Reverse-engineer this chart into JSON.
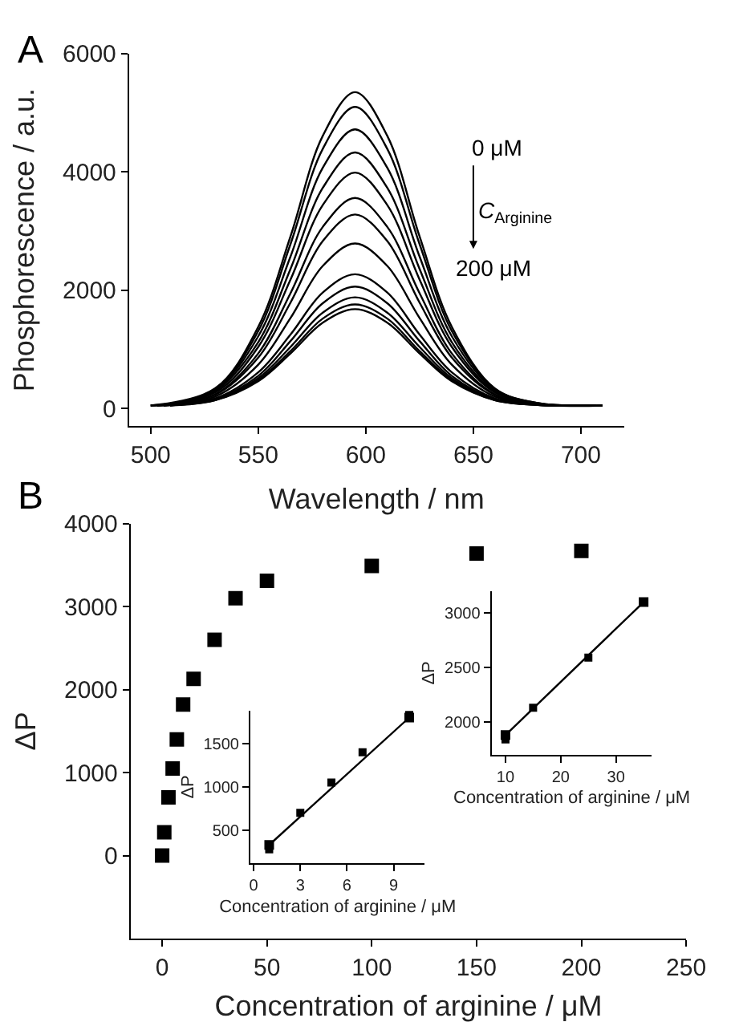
{
  "chart_data": [
    {
      "type": "line",
      "xlabel": "Wavelength / nm",
      "ylabel": "Phosphorescence / a.u.",
      "annotations": [
        "A",
        "0 μM",
        "C$_{Arginine}$",
        "200 μM"
      ],
      "xlim": [
        490,
        720
      ],
      "ylim": [
        -300,
        6000
      ],
      "xticks": [
        500,
        550,
        600,
        650,
        700
      ],
      "yticks": [
        0,
        2000,
        4000,
        6000
      ],
      "line_style": "solid",
      "series": [
        {
          "color": "#000000",
          "x": [
            500,
            530,
            550,
            565,
            580,
            595,
            610,
            625,
            640,
            660,
            680,
            710
          ],
          "values": [
            50,
            340,
            1380,
            2910,
            4610,
            5350,
            4610,
            2910,
            1380,
            340,
            90,
            50
          ]
        },
        {
          "color": "#000000",
          "x": [
            503,
            530,
            550,
            565,
            580,
            595,
            610,
            625,
            640,
            660,
            680,
            710
          ],
          "values": [
            50,
            330,
            1310,
            2780,
            4390,
            5100,
            4390,
            2780,
            1310,
            330,
            90,
            50
          ]
        },
        {
          "color": "#000000",
          "x": [
            506,
            530,
            550,
            565,
            580,
            595,
            610,
            625,
            640,
            660,
            680,
            710
          ],
          "values": [
            50,
            310,
            1220,
            2570,
            4070,
            4720,
            4070,
            2570,
            1220,
            310,
            80,
            50
          ]
        },
        {
          "color": "#000000",
          "x": [
            509,
            530,
            550,
            565,
            580,
            595,
            610,
            625,
            640,
            660,
            680,
            710
          ],
          "values": [
            50,
            290,
            1120,
            2360,
            3730,
            4330,
            3730,
            2360,
            1120,
            290,
            80,
            50
          ]
        },
        {
          "color": "#000000",
          "x": [
            500,
            530,
            550,
            565,
            580,
            595,
            610,
            625,
            640,
            660,
            680,
            707
          ],
          "values": [
            50,
            270,
            1040,
            2180,
            3440,
            3990,
            3440,
            2180,
            1040,
            270,
            80,
            50
          ]
        },
        {
          "color": "#000000",
          "x": [
            503,
            530,
            550,
            565,
            580,
            595,
            610,
            625,
            640,
            660,
            680,
            707
          ],
          "values": [
            50,
            240,
            930,
            1950,
            3070,
            3560,
            3070,
            1950,
            930,
            240,
            70,
            50
          ]
        },
        {
          "color": "#000000",
          "x": [
            506,
            530,
            550,
            565,
            580,
            595,
            610,
            625,
            640,
            660,
            680,
            707
          ],
          "values": [
            50,
            230,
            860,
            1790,
            2830,
            3280,
            2830,
            1790,
            860,
            230,
            70,
            50
          ]
        },
        {
          "color": "#000000",
          "x": [
            509,
            530,
            550,
            565,
            580,
            595,
            610,
            625,
            640,
            660,
            680,
            707
          ],
          "values": [
            50,
            200,
            740,
            1530,
            2410,
            2790,
            2410,
            1530,
            740,
            200,
            70,
            50
          ]
        },
        {
          "color": "#000000",
          "x": [
            500,
            530,
            550,
            565,
            580,
            595,
            610,
            625,
            640,
            660,
            680,
            704
          ],
          "values": [
            50,
            170,
            610,
            1250,
            1960,
            2270,
            1960,
            1250,
            610,
            170,
            70,
            50
          ]
        },
        {
          "color": "#000000",
          "x": [
            503,
            530,
            550,
            565,
            580,
            595,
            610,
            625,
            640,
            660,
            680,
            704
          ],
          "values": [
            50,
            160,
            550,
            1140,
            1780,
            2060,
            1780,
            1140,
            550,
            160,
            60,
            50
          ]
        },
        {
          "color": "#000000",
          "x": [
            506,
            530,
            550,
            565,
            580,
            595,
            610,
            625,
            640,
            660,
            680,
            704
          ],
          "values": [
            50,
            150,
            510,
            1040,
            1620,
            1880,
            1620,
            1040,
            510,
            150,
            60,
            50
          ]
        },
        {
          "color": "#000000",
          "x": [
            509,
            530,
            550,
            565,
            580,
            595,
            610,
            625,
            640,
            660,
            680,
            704
          ],
          "values": [
            50,
            140,
            480,
            970,
            1520,
            1760,
            1520,
            970,
            480,
            140,
            60,
            50
          ]
        },
        {
          "color": "#000000",
          "x": [
            500,
            530,
            550,
            565,
            580,
            595,
            610,
            625,
            640,
            660,
            680,
            701
          ],
          "values": [
            50,
            140,
            460,
            930,
            1450,
            1680,
            1450,
            930,
            460,
            140,
            60,
            50
          ]
        }
      ]
    },
    {
      "type": "scatter",
      "xlabel": "Concentration of arginine / μM",
      "ylabel": "ΔP",
      "annotations": [
        "B"
      ],
      "xlim": [
        -15,
        250
      ],
      "ylim": [
        -1000,
        4000
      ],
      "xticks": [
        0,
        50,
        100,
        150,
        200,
        250
      ],
      "yticks": [
        0,
        1000,
        2000,
        3000,
        4000
      ],
      "marker": "square",
      "x": [
        0,
        1,
        3,
        5,
        7,
        10,
        15,
        25,
        35,
        50,
        100,
        150,
        200
      ],
      "series": [
        {
          "color": "#000000",
          "values": [
            0,
            280,
            700,
            1050,
            1400,
            1820,
            2130,
            2600,
            3100,
            3310,
            3490,
            3640,
            3670
          ]
        }
      ]
    },
    {
      "type": "scatter",
      "xlabel": "Concentration of arginine / μM",
      "ylabel": "ΔP",
      "xlim": [
        -0.2,
        11
      ],
      "ylim": [
        120,
        1880
      ],
      "xticks": [
        0,
        3,
        6,
        9
      ],
      "yticks": [
        500,
        1000,
        1500
      ],
      "marker": "square",
      "series": [
        {
          "type": "line",
          "color": "#000000",
          "x": [
            1,
            10
          ],
          "values": [
            330,
            1800
          ]
        },
        {
          "color": "#000000",
          "x": [
            1,
            3,
            5,
            7,
            10
          ],
          "values": [
            280,
            700,
            1050,
            1400,
            1830
          ]
        }
      ]
    },
    {
      "type": "scatter",
      "xlabel": "Concentration of arginine / μM",
      "ylabel": "ΔP",
      "xlim": [
        7.5,
        36.5
      ],
      "ylim": [
        1700,
        3200
      ],
      "xticks": [
        10,
        20,
        30
      ],
      "yticks": [
        2000,
        2500,
        3000
      ],
      "marker": "square",
      "series": [
        {
          "type": "line",
          "color": "#000000",
          "x": [
            10,
            35
          ],
          "values": [
            1880,
            3100
          ]
        },
        {
          "color": "#000000",
          "x": [
            10,
            15,
            25,
            35
          ],
          "values": [
            1840,
            2130,
            2590,
            3100
          ]
        }
      ]
    }
  ]
}
